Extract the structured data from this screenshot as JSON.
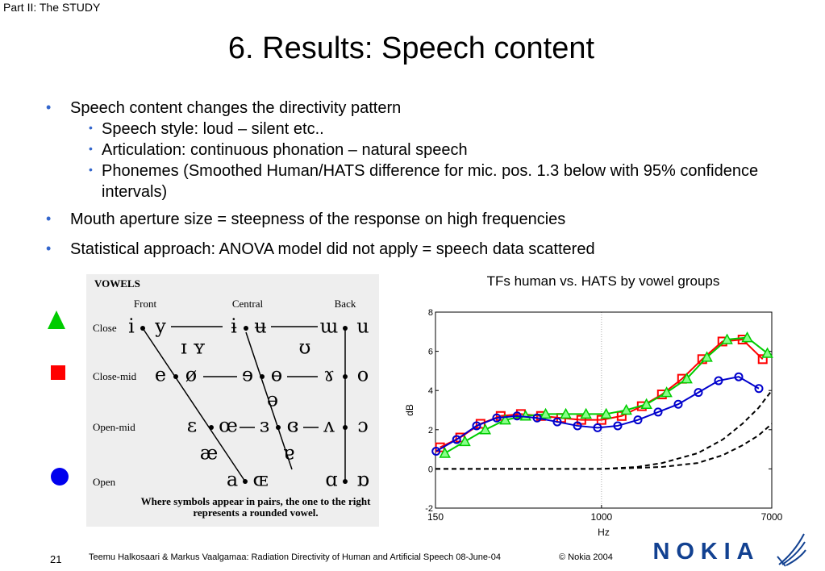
{
  "header": {
    "section": "Part II: The STUDY",
    "title": "6. Results: Speech content"
  },
  "bullets": [
    {
      "text": "Speech content changes the directivity pattern",
      "sub": [
        "Speech style: loud – silent etc..",
        "Articulation: continuous phonation – natural speech",
        "Phonemes (Smoothed Human/HATS difference for mic. pos. 1.3 below with 95% confidence intervals)"
      ]
    },
    {
      "text": "Mouth aperture size = steepness of the response on high frequencies"
    },
    {
      "text": "Statistical approach: ANOVA model did not apply = speech data scattered"
    }
  ],
  "vowel_chart": {
    "title": "VOWELS",
    "columns": [
      "Front",
      "Central",
      "Back"
    ],
    "rows": [
      "Close",
      "Close-mid",
      "Open-mid",
      "Open"
    ],
    "symbols": [
      "i",
      "y",
      "ɨ",
      "ʉ",
      "ɯ",
      "u",
      "ɪ",
      "ʏ",
      "ʊ",
      "e",
      "ø",
      "ɘ",
      "ɵ",
      "ɤ",
      "o",
      "ə",
      "ɛ",
      "œ",
      "ɜ",
      "ɞ",
      "ʌ",
      "ɔ",
      "æ",
      "ɐ",
      "a",
      "ɶ",
      "ɑ",
      "ɒ"
    ],
    "note": [
      "Where symbols appear in pairs, the one to the right",
      "represents a rounded vowel."
    ]
  },
  "chart_data": {
    "type": "line",
    "title": "TFs human vs. HATS by vowel groups",
    "x_label": "Hz",
    "y_label": "dB",
    "xscale": "log",
    "xlim": [
      150,
      7000
    ],
    "xticks": [
      150,
      1000,
      7000
    ],
    "ylim": [
      -2,
      8
    ],
    "yticks": [
      -2,
      0,
      2,
      4,
      6,
      8
    ],
    "grid": true,
    "series": [
      {
        "color": "#ff0000",
        "marker": "square",
        "x": [
          158,
          199,
          251,
          316,
          398,
          501,
          631,
          794,
          1000,
          1259,
          1585,
          1995,
          2512,
          3162,
          3981,
          5012,
          6310
        ],
        "values": [
          1.1,
          1.6,
          2.3,
          2.7,
          2.8,
          2.7,
          2.6,
          2.5,
          2.5,
          2.7,
          3.2,
          3.8,
          4.6,
          5.6,
          6.5,
          6.6,
          5.6
        ]
      },
      {
        "color": "#00cc00",
        "marker": "triangle",
        "x": [
          167,
          210,
          265,
          333,
          420,
          528,
          665,
          838,
          1055,
          1328,
          1672,
          2105,
          2650,
          3336,
          4200,
          5288,
          6658
        ],
        "values": [
          0.8,
          1.4,
          2.0,
          2.5,
          2.7,
          2.8,
          2.8,
          2.8,
          2.8,
          3.0,
          3.3,
          3.9,
          4.6,
          5.7,
          6.6,
          6.7,
          5.9
        ]
      },
      {
        "color": "#0000cc",
        "marker": "circle",
        "x": [
          151,
          191,
          240,
          302,
          381,
          479,
          603,
          760,
          956,
          1204,
          1516,
          1909,
          2403,
          3026,
          3810,
          4797,
          6040
        ],
        "values": [
          0.9,
          1.5,
          2.2,
          2.6,
          2.7,
          2.6,
          2.4,
          2.2,
          2.1,
          2.2,
          2.5,
          2.9,
          3.3,
          3.9,
          4.5,
          4.7,
          4.1
        ]
      },
      {
        "color": "#000000",
        "linestyle": "dashed",
        "x": [
          150,
          1000,
          1500,
          2000,
          3000,
          4000,
          5000,
          6000,
          7000
        ],
        "values": [
          0,
          0,
          0.1,
          0.3,
          0.8,
          1.5,
          2.3,
          3.1,
          4.0
        ]
      },
      {
        "color": "#000000",
        "linestyle": "dashed",
        "x": [
          150,
          1000,
          1500,
          2000,
          3000,
          4000,
          5000,
          6000,
          7000
        ],
        "values": [
          0,
          0,
          0.05,
          0.1,
          0.3,
          0.7,
          1.2,
          1.7,
          2.3
        ]
      }
    ]
  },
  "footer": {
    "page": "21",
    "citation": "Teemu Halkosaari & Markus Vaalgamaa: Radiation Directivity of Human and Artificial Speech  08-June-04",
    "copyright": "© Nokia 2004",
    "logo": "NOKIA"
  }
}
